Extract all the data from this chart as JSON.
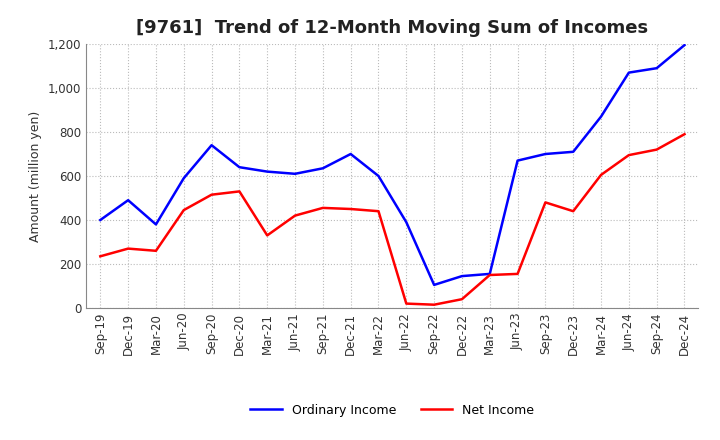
{
  "title": "[9761]  Trend of 12-Month Moving Sum of Incomes",
  "ylabel": "Amount (million yen)",
  "ylim": [
    0,
    1200
  ],
  "yticks": [
    0,
    200,
    400,
    600,
    800,
    1000,
    1200
  ],
  "background_color": "#ffffff",
  "grid_color": "#bbbbbb",
  "labels": [
    "Sep-19",
    "Dec-19",
    "Mar-20",
    "Jun-20",
    "Sep-20",
    "Dec-20",
    "Mar-21",
    "Jun-21",
    "Sep-21",
    "Dec-21",
    "Mar-22",
    "Jun-22",
    "Sep-22",
    "Dec-22",
    "Mar-23",
    "Jun-23",
    "Sep-23",
    "Dec-23",
    "Mar-24",
    "Jun-24",
    "Sep-24",
    "Dec-24"
  ],
  "ordinary_income": [
    400,
    490,
    380,
    590,
    740,
    640,
    620,
    610,
    635,
    700,
    600,
    390,
    105,
    145,
    155,
    670,
    700,
    710,
    870,
    1070,
    1090,
    1195
  ],
  "net_income": [
    235,
    270,
    260,
    445,
    515,
    530,
    330,
    420,
    455,
    450,
    440,
    20,
    15,
    40,
    150,
    155,
    480,
    440,
    605,
    695,
    720,
    790
  ],
  "ordinary_color": "#0000ff",
  "net_color": "#ff0000",
  "line_width": 1.8,
  "title_fontsize": 13,
  "axis_fontsize": 9,
  "tick_fontsize": 8.5,
  "legend_fontsize": 9
}
